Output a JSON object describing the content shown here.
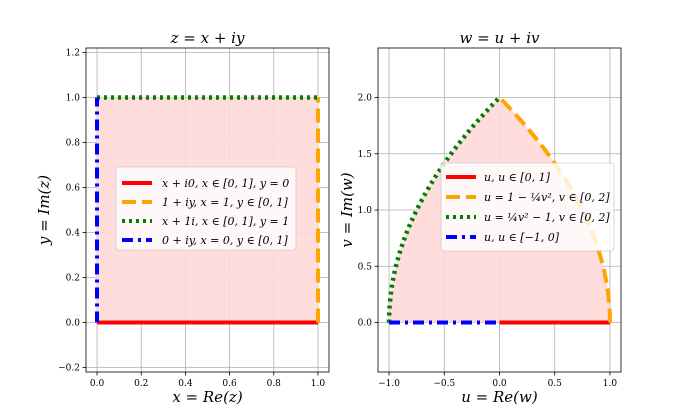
{
  "chart_data": [
    {
      "type": "line",
      "title": "z = x + iy",
      "xlabel": "x = Re(z)",
      "ylabel": "y = Im(z)",
      "xlim": [
        -0.05,
        1.05
      ],
      "ylim": [
        -0.22,
        1.22
      ],
      "xticks": [
        0.0,
        0.2,
        0.4,
        0.6,
        0.8,
        1.0
      ],
      "xtick_labels": [
        "0.0",
        "0.2",
        "0.4",
        "0.6",
        "0.8",
        "1.0"
      ],
      "yticks": [
        -0.2,
        0.0,
        0.2,
        0.4,
        0.6,
        0.8,
        1.0,
        1.2
      ],
      "ytick_labels": [
        "−0.2",
        "0.0",
        "0.2",
        "0.4",
        "0.6",
        "0.8",
        "1.0",
        "1.2"
      ],
      "grid": true,
      "legend_position": "center-right",
      "fill": {
        "color": "#ffd9d9",
        "x": [
          0,
          1,
          1,
          0
        ],
        "y": [
          0,
          0,
          1,
          1
        ]
      },
      "series": [
        {
          "name": "x + i0,  x ∈ [0, 1],  y = 0",
          "color": "#ff0000",
          "style": "solid",
          "x": [
            0,
            1
          ],
          "y": [
            0,
            0
          ]
        },
        {
          "name": "1 + iy,  x = 1,  y ∈ [0, 1]",
          "color": "#ffa500",
          "style": "dashed",
          "x": [
            1,
            1
          ],
          "y": [
            0,
            1
          ]
        },
        {
          "name": "x + 1i,  x ∈ [0, 1],  y = 1",
          "color": "#008000",
          "style": "dotted",
          "x": [
            0,
            1
          ],
          "y": [
            1,
            1
          ]
        },
        {
          "name": "0 + iy,  x = 0,  y ∈ [0, 1]",
          "color": "#0000ff",
          "style": "dashdot",
          "x": [
            0,
            0
          ],
          "y": [
            0,
            1
          ]
        }
      ]
    },
    {
      "type": "line",
      "title": "w = u + iv",
      "xlabel": "u = Re(w)",
      "ylabel": "v = Im(w)",
      "xlim": [
        -1.1,
        1.1
      ],
      "ylim": [
        -0.44,
        2.44
      ],
      "xticks": [
        -1.0,
        -0.5,
        0.0,
        0.5,
        1.0
      ],
      "xtick_labels": [
        "−1.0",
        "−0.5",
        "0.0",
        "0.5",
        "1.0"
      ],
      "yticks": [
        0.0,
        0.5,
        1.0,
        1.5,
        2.0
      ],
      "ytick_labels": [
        "0.0",
        "0.5",
        "1.0",
        "1.5",
        "2.0"
      ],
      "grid": true,
      "legend_position": "center-right",
      "fill": {
        "color": "#ffd9d9"
      },
      "series": [
        {
          "name": "u,  u ∈ [0, 1]",
          "color": "#ff0000",
          "style": "solid",
          "x": [
            0,
            1
          ],
          "y": [
            0,
            0
          ]
        },
        {
          "name": "u = 1 − ¼v²,  v ∈ [0, 2]",
          "color": "#ffa500",
          "style": "dashed",
          "x": [
            1.0,
            0.9375,
            0.75,
            0.4375,
            0.0
          ],
          "y": [
            0.0,
            0.5,
            1.0,
            1.5,
            2.0
          ]
        },
        {
          "name": "u = ¼v² − 1,  v ∈ [0, 2]",
          "color": "#008000",
          "style": "dotted",
          "x": [
            -1.0,
            -0.9375,
            -0.75,
            -0.4375,
            0.0
          ],
          "y": [
            0.0,
            0.5,
            1.0,
            1.5,
            2.0
          ]
        },
        {
          "name": "u,  u ∈ [−1, 0]",
          "color": "#0000ff",
          "style": "dashdot",
          "x": [
            -1,
            0
          ],
          "y": [
            0,
            0
          ]
        }
      ]
    }
  ]
}
